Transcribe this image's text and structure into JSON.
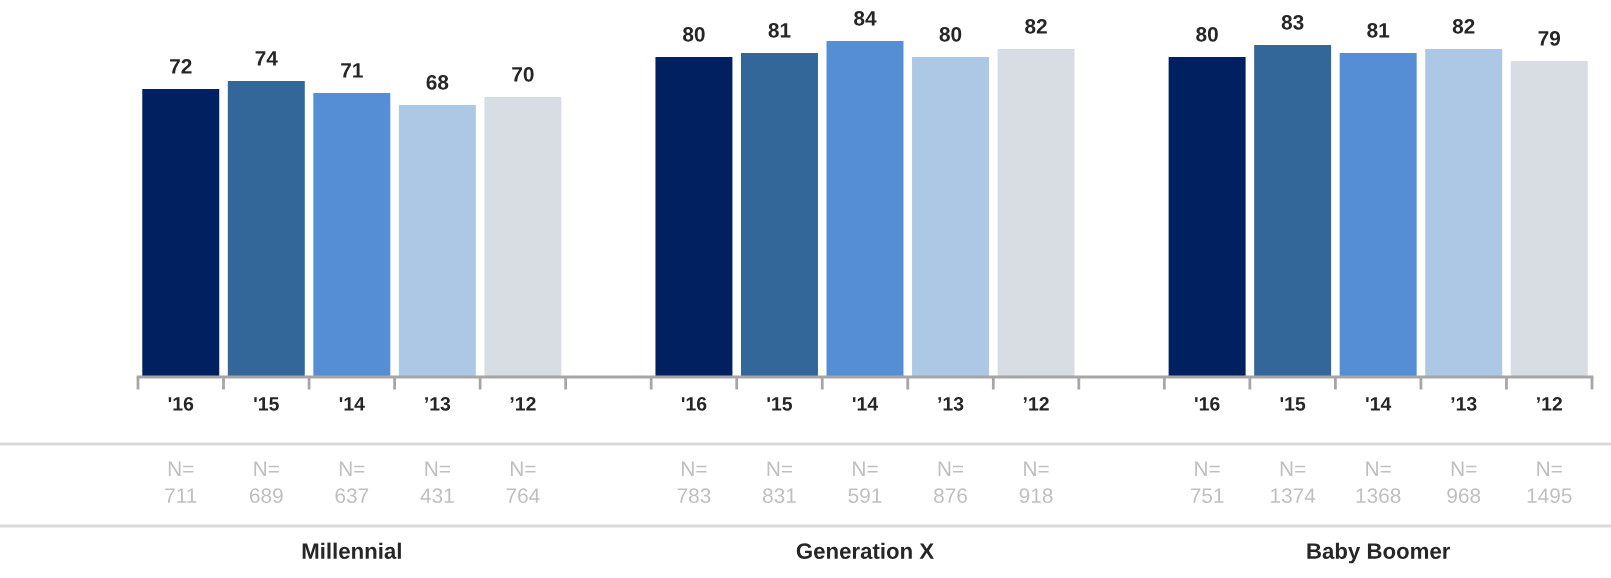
{
  "chart_data": {
    "type": "bar",
    "categories": [
      "'16",
      "'15",
      "'14",
      "’13",
      "’12",
      null,
      "'16",
      "'15",
      "'14",
      "’13",
      "’12",
      null,
      "'16",
      "'15",
      "'14",
      "’13",
      "’12"
    ],
    "values": [
      72,
      74,
      71,
      68,
      70,
      null,
      80,
      81,
      84,
      80,
      82,
      null,
      80,
      83,
      81,
      82,
      79
    ],
    "colors": [
      "#002060",
      "#336699",
      "#558ed5",
      "#adc8e4",
      "#d8dce3",
      null,
      "#002060",
      "#336699",
      "#558ed5",
      "#adc8e4",
      "#d8dce3",
      null,
      "#002060",
      "#336699",
      "#558ed5",
      "#adc8e4",
      "#d8dce3"
    ],
    "data_labels": true,
    "tick_labels": "x",
    "grid": false,
    "annotations": [
      "N=\n711",
      "N=\n689",
      "N=\n637",
      "N=\n431",
      "N=\n764",
      "N=\n783",
      "N=\n831",
      "N=\n591",
      "N=\n876",
      "N=\n918",
      "N=\n751",
      "N=\n1374",
      "N=\n1368",
      "N=\n968",
      "N=\n1495",
      "Millennial",
      "Generation X",
      "Baby Boomer"
    ]
  }
}
